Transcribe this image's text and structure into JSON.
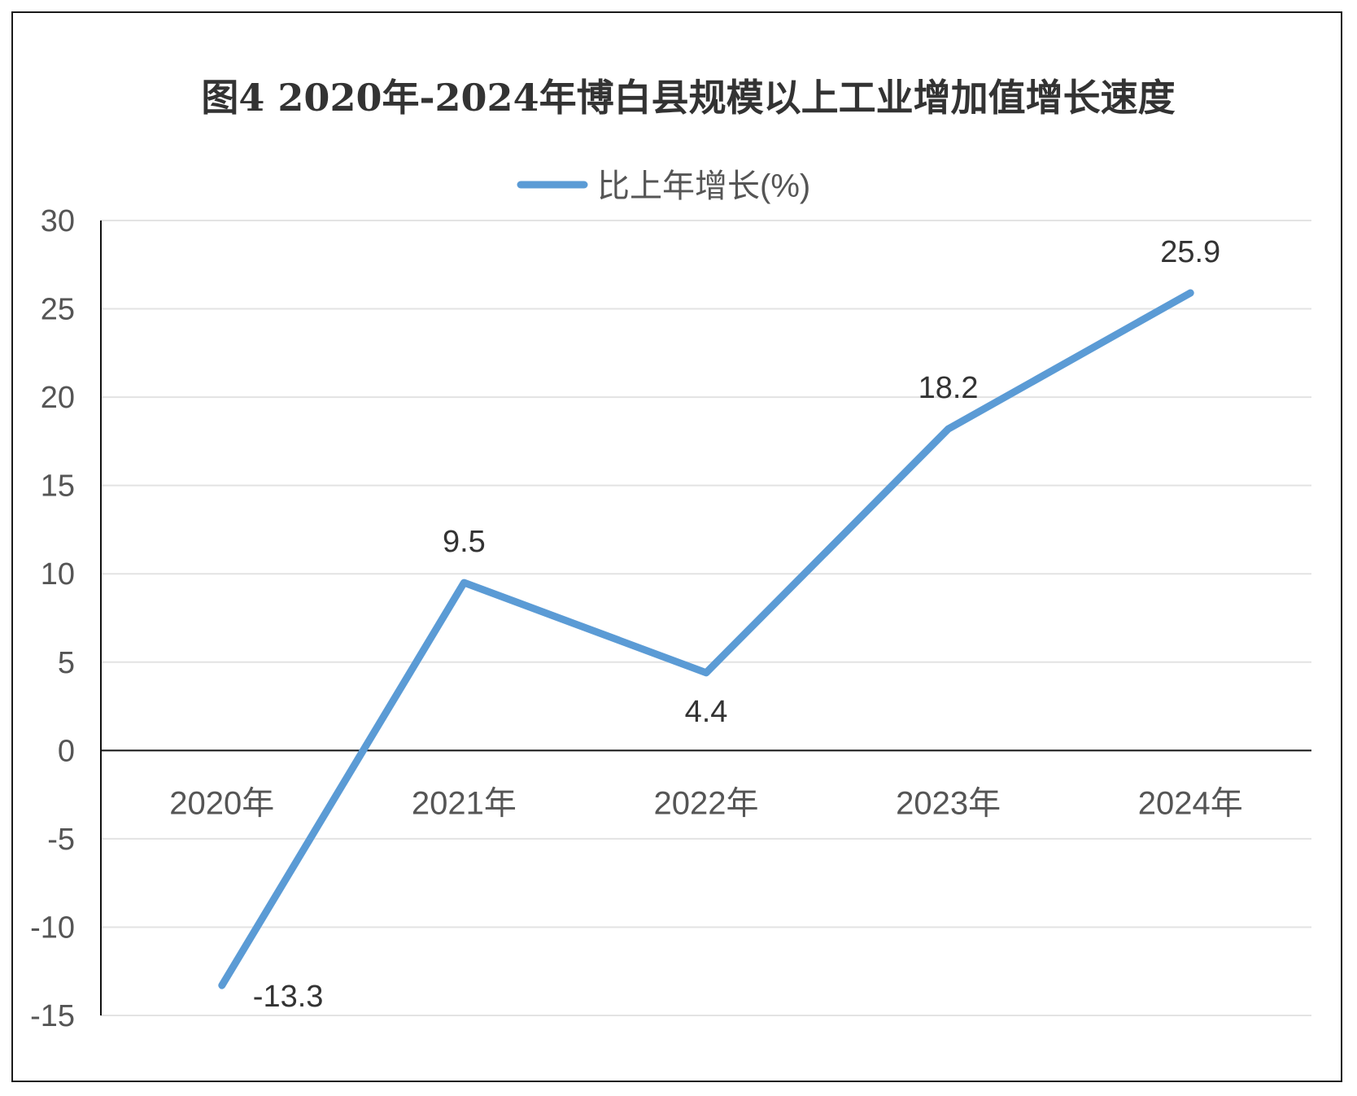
{
  "chart_data": {
    "type": "line",
    "title": "图4 2020年-2024年博白县规模以上工业增加值增长速度",
    "categories": [
      "2020年",
      "2021年",
      "2022年",
      "2023年",
      "2024年"
    ],
    "series": [
      {
        "name": "比上年增长(%)",
        "values": [
          -13.3,
          9.5,
          4.4,
          18.2,
          25.9
        ],
        "color": "#5b9bd5"
      }
    ],
    "ylim": [
      -15,
      30
    ],
    "yticks": [
      30,
      25,
      20,
      15,
      10,
      5,
      0,
      -5,
      -10,
      -15
    ],
    "grid": true,
    "legend_position": "top-center",
    "gridline_color": "#e3e3e3",
    "axis_color": "#111111"
  }
}
